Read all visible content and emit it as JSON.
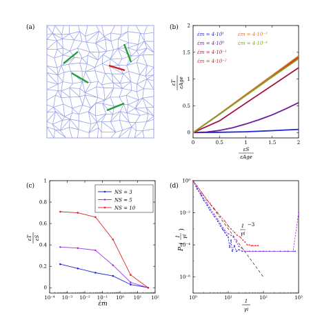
{
  "panel_labels": [
    "(a)",
    "(b)",
    "(c)",
    "(d)"
  ],
  "colors": {
    "mesh": "#9aa3e6",
    "highlight": "#1e9e35",
    "highlight_alt": "#cc1b2a",
    "blue": "#1f23d8",
    "purple": "#a034e0",
    "red": "#e0262c",
    "navy": "#2622b0",
    "darkpurple": "#6a1aa0",
    "maroon": "#a0153a",
    "crimson": "#d81f26",
    "orange": "#d9722a",
    "olive": "#7ea126"
  },
  "chart_data": [
    {
      "panel": "a",
      "type": "diagram",
      "description_icon": "polygon-mesh"
    },
    {
      "panel": "b",
      "type": "line",
      "xlabel_num": "εS",
      "xlabel_den": "εAge",
      "ylabel_num": "εT",
      "ylabel_den": "εAge",
      "xlim": [
        0,
        2
      ],
      "ylim": [
        -0.1,
        2
      ],
      "xticks": [
        "0",
        "0.5",
        "1",
        "1.5",
        "2"
      ],
      "yticks": [
        "0",
        "0.5",
        "1",
        "1.5",
        "2"
      ],
      "legend_left": [
        {
          "label": "ε̇m = 4·10¹",
          "color": "#1f23d8"
        },
        {
          "label": "ε̇m = 4·10⁰",
          "color": "#6a1aa0"
        },
        {
          "label": "ε̇m = 4·10⁻¹",
          "color": "#a0153a"
        },
        {
          "label": "ε̇m = 4·10⁻²",
          "color": "#d81f26"
        }
      ],
      "legend_right": [
        {
          "label": "ε̇m = 4·10⁻³",
          "color": "#d9722a"
        },
        {
          "label": "ε̇m = 4·10⁻⁴",
          "color": "#7ea126"
        }
      ],
      "series": [
        {
          "name": "4·10^1",
          "color": "#1f23d8",
          "x": [
            0,
            0.5,
            1,
            1.5,
            2
          ],
          "y": [
            0,
            0.005,
            0.015,
            0.035,
            0.06
          ]
        },
        {
          "name": "4·10^0",
          "color": "#6a1aa0",
          "x": [
            0,
            0.25,
            0.5,
            0.75,
            1,
            1.25,
            1.5,
            1.75,
            2
          ],
          "y": [
            0,
            0.01,
            0.04,
            0.09,
            0.16,
            0.24,
            0.33,
            0.44,
            0.56
          ]
        },
        {
          "name": "4·10^-1",
          "color": "#a0153a",
          "x": [
            0,
            0.5,
            1,
            1.5,
            2
          ],
          "y": [
            0,
            0.22,
            0.55,
            0.88,
            1.21
          ]
        },
        {
          "name": "4·10^-2",
          "color": "#d81f26",
          "x": [
            0,
            0.5,
            1,
            1.5,
            2
          ],
          "y": [
            0,
            0.34,
            0.7,
            1.05,
            1.41
          ]
        },
        {
          "name": "4·10^-3",
          "color": "#d9722a",
          "x": [
            0,
            0.5,
            1,
            1.5,
            2
          ],
          "y": [
            0,
            0.35,
            0.71,
            1.07,
            1.43
          ]
        },
        {
          "name": "4·10^-4",
          "color": "#7ea126",
          "x": [
            0,
            0.5,
            1,
            1.5,
            2
          ],
          "y": [
            0,
            0.34,
            0.69,
            1.04,
            1.38
          ]
        }
      ]
    },
    {
      "panel": "c",
      "type": "line",
      "xscale": "log",
      "xlabel": "ε̇m",
      "ylabel_num": "εT",
      "ylabel_den": "εS",
      "xlim": [
        0.0001,
        100
      ],
      "ylim": [
        -0.05,
        1
      ],
      "xticks": [
        "10⁻⁴",
        "10⁻³",
        "10⁻²",
        "10⁻¹",
        "10⁰",
        "10¹",
        "10²"
      ],
      "yticks": [
        "0",
        "0.2",
        "0.4",
        "0.6",
        "0.8",
        "1"
      ],
      "series": [
        {
          "name": "NS = 3",
          "color": "#1f23d8",
          "x": [
            0.0004,
            0.004,
            0.04,
            0.4,
            4,
            40
          ],
          "y": [
            0.22,
            0.18,
            0.14,
            0.11,
            0.03,
            0.0
          ]
        },
        {
          "name": "NS = 5",
          "color": "#a034e0",
          "x": [
            0.0004,
            0.004,
            0.04,
            0.4,
            4,
            40
          ],
          "y": [
            0.38,
            0.37,
            0.35,
            0.21,
            0.05,
            0.0
          ]
        },
        {
          "name": "NS = 10",
          "color": "#e0262c",
          "x": [
            0.0004,
            0.004,
            0.04,
            0.4,
            4,
            40
          ],
          "y": [
            0.71,
            0.7,
            0.66,
            0.45,
            0.12,
            0.0
          ]
        }
      ]
    },
    {
      "panel": "d",
      "type": "scatter",
      "xscale": "log",
      "yscale": "log",
      "xlabel_num": "1",
      "xlabel_den": "γi",
      "ylabel": "P",
      "ylabel_arg_num": "1",
      "ylabel_arg_den": "γi",
      "xlim": [
        1,
        1000
      ],
      "ylim": [
        1e-07,
        1
      ],
      "xticks": [
        "10⁰",
        "10¹",
        "10²",
        "10³"
      ],
      "yticks": [
        "10⁰",
        "10⁻²",
        "10⁻⁴",
        "10⁻⁶"
      ],
      "annotation_base": "1",
      "annotation_den": "γi",
      "annotation_exp": "−3",
      "guide_line": {
        "x": [
          1,
          100
        ],
        "y": [
          1,
          1e-06
        ]
      },
      "series": [
        {
          "name": "NS = 3",
          "color": "#1f23d8",
          "x": [
            1,
            1.3,
            1.7,
            2,
            2.5,
            3,
            4,
            5,
            6,
            7,
            8,
            9,
            10,
            11,
            12,
            13,
            15,
            17,
            20,
            25,
            30,
            40,
            50,
            60,
            80,
            100,
            150,
            200,
            300,
            500,
            800
          ],
          "y": [
            1,
            0.3,
            0.12,
            0.06,
            0.03,
            0.015,
            0.006,
            0.003,
            0.0015,
            0.0009,
            0.0006,
            0.0004,
            0.0003,
            7e-05,
            0.0002,
            4e-05,
            9e-05,
            4e-05,
            5e-05,
            4e-05,
            4e-05,
            4e-05,
            4e-05,
            4e-05,
            4e-05,
            4e-05,
            4e-05,
            4e-05,
            4e-05,
            4e-05,
            4e-05
          ]
        },
        {
          "name": "NS = 5",
          "color": "#a034e0",
          "x": [
            1,
            1.3,
            1.7,
            2,
            2.5,
            3,
            4,
            5,
            6,
            7,
            8,
            10,
            12,
            14,
            17,
            20,
            25,
            30,
            40,
            50,
            80,
            120,
            200,
            400,
            700,
            1000
          ],
          "y": [
            1,
            0.35,
            0.15,
            0.08,
            0.04,
            0.02,
            0.008,
            0.004,
            0.002,
            0.0012,
            0.0008,
            0.0005,
            0.0004,
            0.0003,
            0.00015,
            8e-05,
            6e-05,
            4e-05,
            4e-05,
            4e-05,
            4e-05,
            4e-05,
            4e-05,
            4e-05,
            4e-05,
            0.01
          ]
        },
        {
          "name": "NS = 10",
          "color": "#e0262c",
          "x": [
            1,
            1.3,
            1.7,
            2,
            2.5,
            3,
            4,
            5,
            6,
            8,
            10,
            12,
            15,
            18,
            22,
            26,
            30,
            35,
            40,
            45,
            50,
            60,
            70
          ],
          "y": [
            1,
            0.45,
            0.2,
            0.12,
            0.06,
            0.04,
            0.018,
            0.01,
            0.006,
            0.003,
            0.0015,
            0.001,
            0.0006,
            0.0004,
            0.0003,
            0.0002,
            0.00015,
            0.0001,
            0.0001,
            9e-05,
            9e-05,
            9e-05,
            9e-05
          ]
        }
      ]
    }
  ]
}
